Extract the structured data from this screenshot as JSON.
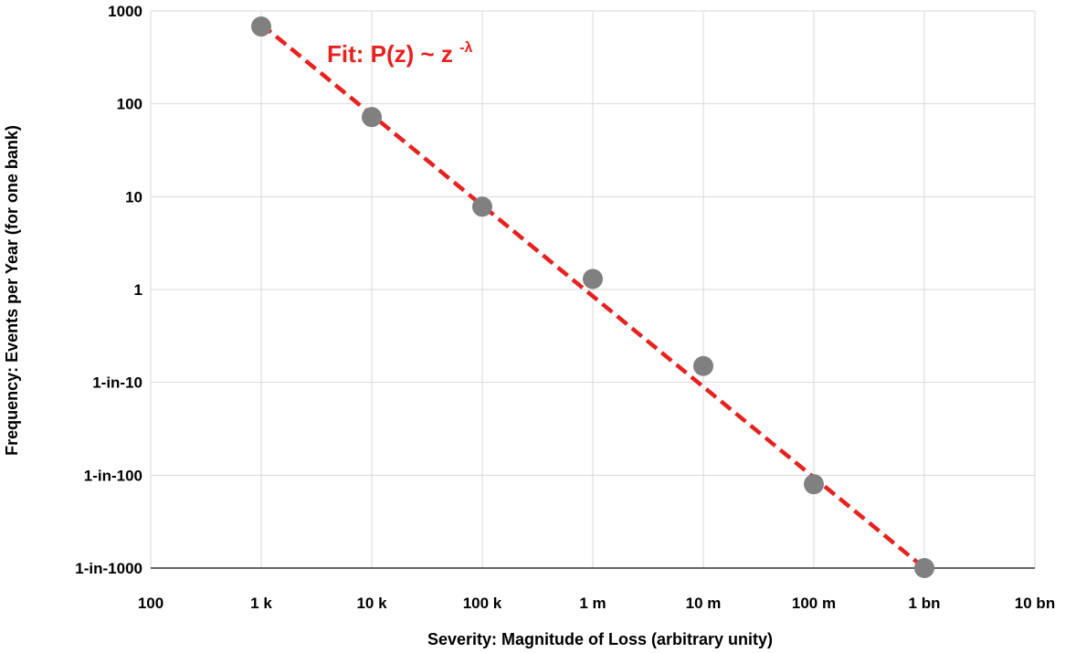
{
  "chart_data": {
    "type": "scatter",
    "xlabel": "Severity: Magnitude of Loss (arbitrary unity)",
    "ylabel": "Frequency: Events per Year (for one bank)",
    "x_scale": "log",
    "y_scale": "log",
    "xlim": [
      100,
      10000000000
    ],
    "ylim": [
      0.001,
      1000
    ],
    "x_ticks": [
      {
        "value": 100,
        "label": "100"
      },
      {
        "value": 1000,
        "label": "1 k"
      },
      {
        "value": 10000,
        "label": "10 k"
      },
      {
        "value": 100000,
        "label": "100 k"
      },
      {
        "value": 1000000,
        "label": "1 m"
      },
      {
        "value": 10000000,
        "label": "10 m"
      },
      {
        "value": 100000000,
        "label": "100 m"
      },
      {
        "value": 1000000000,
        "label": "1 bn"
      },
      {
        "value": 10000000000,
        "label": "10 bn"
      }
    ],
    "y_ticks": [
      {
        "value": 1000,
        "label": "1000"
      },
      {
        "value": 100,
        "label": "100"
      },
      {
        "value": 10,
        "label": "10"
      },
      {
        "value": 1,
        "label": "1"
      },
      {
        "value": 0.1,
        "label": "1-in-10"
      },
      {
        "value": 0.01,
        "label": "1-in-100"
      },
      {
        "value": 0.001,
        "label": "1-in-1000"
      }
    ],
    "grid": true,
    "series": [
      {
        "points": [
          {
            "x": 1000,
            "y": 680
          },
          {
            "x": 10000,
            "y": 72
          },
          {
            "x": 100000,
            "y": 7.8
          },
          {
            "x": 1000000,
            "y": 1.3
          },
          {
            "x": 10000000,
            "y": 0.15
          },
          {
            "x": 100000000,
            "y": 0.008
          },
          {
            "x": 1000000000,
            "y": 0.001
          }
        ],
        "color": "#808080"
      }
    ],
    "fit_line": {
      "from": {
        "x": 1000,
        "y": 720
      },
      "to": {
        "x": 1000000000,
        "y": 0.001
      },
      "color": "#e8211f",
      "style": "dashed"
    },
    "annotation": {
      "text_main": "Fit: P(z) ~ z",
      "text_sup": "-λ",
      "color": "#e8211f"
    }
  }
}
